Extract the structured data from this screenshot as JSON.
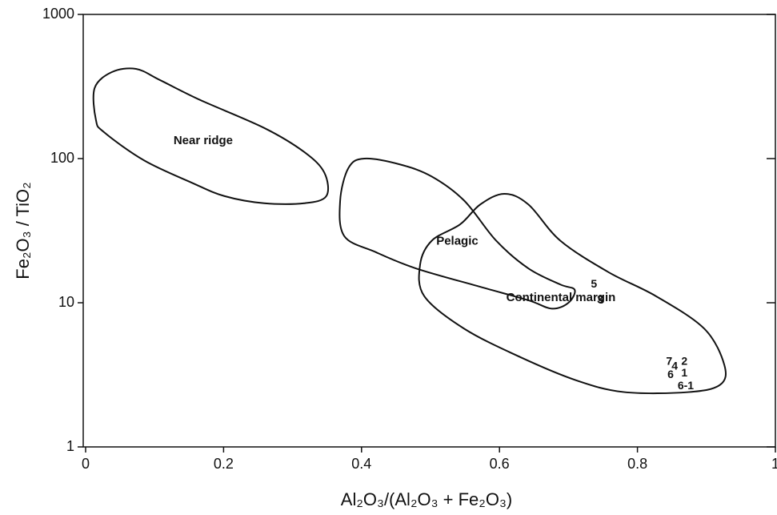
{
  "chart_data": {
    "type": "region-scatter",
    "x_label": "Al₂O₃/(Al₂O₃ + Fe₂O₃)",
    "y_label": "Fe₂O₃ / TiO₂",
    "xlim": [
      0,
      1
    ],
    "ylim": [
      1,
      1000
    ],
    "xticks": [
      0,
      0.2,
      0.4,
      0.6,
      0.8,
      1
    ],
    "yticks": [
      1,
      10,
      100,
      1000
    ],
    "log_y": true,
    "grid": false,
    "regions": [
      {
        "name": "Near ridge",
        "x": [
          0.015,
          0.013,
          0.038,
          0.073,
          0.108,
          0.166,
          0.259,
          0.317,
          0.346,
          0.349,
          0.317,
          0.259,
          0.201,
          0.154,
          0.085,
          0.027
        ],
        "y": [
          185,
          308,
          398,
          419,
          350,
          255,
          163,
          111,
          80,
          55,
          49,
          49,
          55,
          68,
          97,
          152
        ]
      },
      {
        "name": "Pelagic",
        "x": [
          0.375,
          0.369,
          0.381,
          0.404,
          0.456,
          0.502,
          0.549,
          0.595,
          0.642,
          0.688,
          0.709,
          0.7,
          0.676,
          0.642,
          0.572,
          0.479,
          0.421
        ],
        "y": [
          29,
          51,
          86,
          100,
          91,
          75,
          51,
          27,
          17.3,
          13.4,
          12.3,
          10,
          9.1,
          10.4,
          12.9,
          17.3,
          22.4
        ]
      },
      {
        "name": "Continental margin",
        "x": [
          0.485,
          0.502,
          0.543,
          0.572,
          0.607,
          0.642,
          0.688,
          0.758,
          0.827,
          0.897,
          0.926,
          0.92,
          0.874,
          0.781,
          0.711,
          0.63,
          0.549,
          0.491
        ],
        "y": [
          18.5,
          27,
          35,
          48,
          57,
          48,
          27,
          16.3,
          11.1,
          6.6,
          3.7,
          2.7,
          2.4,
          2.4,
          2.9,
          4.2,
          6.6,
          11.1
        ]
      }
    ],
    "points": [
      {
        "label": "5",
        "x": 0.737,
        "y": 13.4
      },
      {
        "label": "3",
        "x": 0.746,
        "y": 10.4
      },
      {
        "label": "7",
        "x": 0.846,
        "y": 3.88
      },
      {
        "label": "4",
        "x": 0.854,
        "y": 3.6
      },
      {
        "label": "2",
        "x": 0.868,
        "y": 3.88
      },
      {
        "label": "6",
        "x": 0.848,
        "y": 3.16
      },
      {
        "label": "1",
        "x": 0.868,
        "y": 3.24
      },
      {
        "label": "6-1",
        "x": 0.87,
        "y": 2.64
      }
    ]
  }
}
